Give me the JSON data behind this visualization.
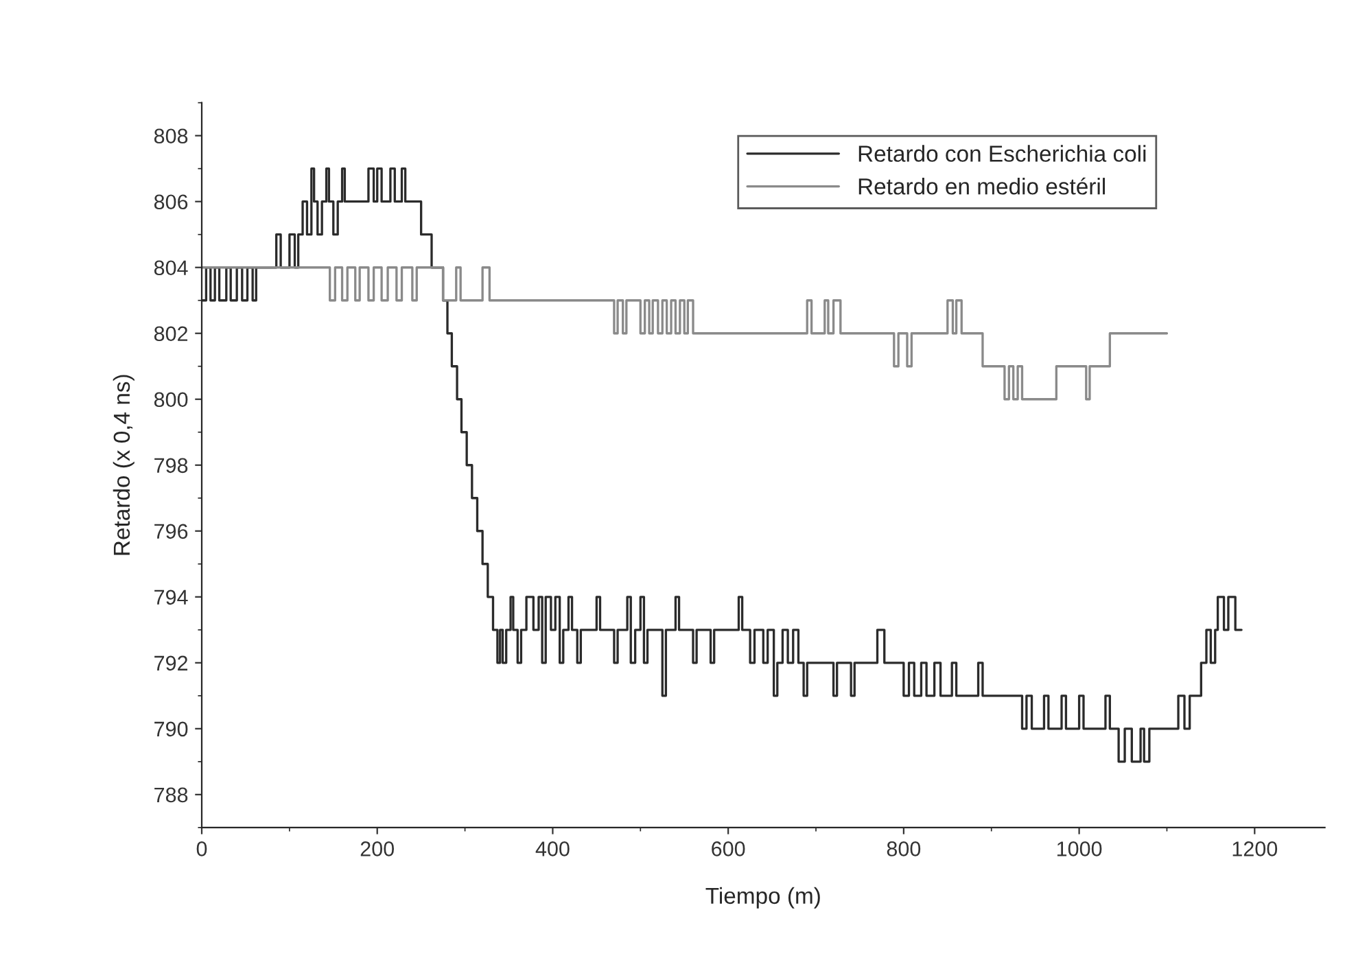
{
  "chart_data": {
    "type": "step",
    "xlabel": "Tiempo (m)",
    "ylabel": "Retardo (x 0,4 ns)",
    "xlim": [
      0,
      1280
    ],
    "ylim": [
      787,
      809
    ],
    "xticks": [
      0,
      200,
      400,
      600,
      800,
      1000,
      1200
    ],
    "yticks": [
      788,
      790,
      792,
      794,
      796,
      798,
      800,
      802,
      804,
      806,
      808
    ],
    "grid": false,
    "legend": "top right",
    "marker": "none",
    "line_style": "solid",
    "series": [
      {
        "name": "Retardo con Escherichia coli",
        "color": "#2b2b2b",
        "x": [
          0,
          5,
          10,
          15,
          20,
          28,
          33,
          40,
          46,
          52,
          58,
          62,
          85,
          90,
          100,
          106,
          110,
          115,
          120,
          125,
          128,
          132,
          137,
          142,
          145,
          150,
          155,
          160,
          163,
          190,
          196,
          200,
          205,
          215,
          220,
          228,
          232,
          250,
          262,
          275,
          280,
          285,
          291,
          296,
          302,
          308,
          314,
          320,
          326,
          332,
          337,
          340,
          343,
          347,
          352,
          355,
          360,
          364,
          370,
          378,
          384,
          388,
          392,
          398,
          403,
          408,
          412,
          418,
          422,
          428,
          432,
          450,
          454,
          470,
          474,
          485,
          489,
          494,
          500,
          504,
          508,
          525,
          529,
          540,
          544,
          560,
          564,
          580,
          584,
          612,
          616,
          625,
          630,
          640,
          645,
          652,
          656,
          662,
          668,
          674,
          680,
          686,
          690,
          720,
          724,
          740,
          744,
          770,
          778,
          800,
          806,
          812,
          820,
          826,
          835,
          842,
          855,
          860,
          885,
          890,
          935,
          940,
          946,
          960,
          965,
          980,
          985,
          1000,
          1005,
          1030,
          1035,
          1045,
          1052,
          1060,
          1070,
          1074,
          1080,
          1113,
          1120,
          1126,
          1139,
          1145,
          1150,
          1155,
          1158,
          1165,
          1170,
          1178,
          1185
        ],
        "values": [
          803,
          804,
          803,
          804,
          803,
          804,
          803,
          804,
          803,
          804,
          803,
          804,
          805,
          804,
          805,
          804,
          805,
          806,
          805,
          807,
          806,
          805,
          806,
          807,
          806,
          805,
          806,
          807,
          806,
          807,
          806,
          807,
          806,
          807,
          806,
          807,
          806,
          805,
          804,
          803,
          802,
          801,
          800,
          799,
          798,
          797,
          796,
          795,
          794,
          793,
          792,
          793,
          792,
          793,
          794,
          793,
          792,
          793,
          794,
          793,
          794,
          792,
          794,
          793,
          794,
          792,
          793,
          794,
          793,
          792,
          793,
          794,
          793,
          792,
          793,
          794,
          792,
          793,
          794,
          792,
          793,
          791,
          793,
          794,
          793,
          792,
          793,
          792,
          793,
          794,
          793,
          792,
          793,
          792,
          793,
          791,
          792,
          793,
          792,
          793,
          792,
          791,
          792,
          791,
          792,
          791,
          792,
          793,
          792,
          791,
          792,
          791,
          792,
          791,
          792,
          791,
          792,
          791,
          792,
          791,
          790,
          791,
          790,
          791,
          790,
          791,
          790,
          791,
          790,
          791,
          790,
          789,
          790,
          789,
          790,
          789,
          790,
          791,
          790,
          791,
          792,
          793,
          792,
          793,
          794,
          793,
          794,
          793,
          793
        ]
      },
      {
        "name": "Retardo en medio estéril",
        "color": "#8a8a8a",
        "x": [
          0,
          146,
          152,
          160,
          166,
          175,
          180,
          190,
          196,
          205,
          212,
          222,
          228,
          240,
          245,
          275,
          290,
          295,
          320,
          328,
          470,
          474,
          480,
          484,
          500,
          505,
          510,
          514,
          520,
          525,
          530,
          535,
          540,
          545,
          550,
          554,
          560,
          690,
          695,
          710,
          714,
          720,
          728,
          789,
          794,
          804,
          809,
          850,
          856,
          860,
          866,
          890,
          915,
          920,
          925,
          930,
          935,
          974,
          1008,
          1012,
          1035,
          1100
        ],
        "values": [
          804,
          803,
          804,
          803,
          804,
          803,
          804,
          803,
          804,
          803,
          804,
          803,
          804,
          803,
          804,
          803,
          804,
          803,
          804,
          803,
          802,
          803,
          802,
          803,
          802,
          803,
          802,
          803,
          802,
          803,
          802,
          803,
          802,
          803,
          802,
          803,
          802,
          803,
          802,
          803,
          802,
          803,
          802,
          801,
          802,
          801,
          802,
          803,
          802,
          803,
          802,
          801,
          800,
          801,
          800,
          801,
          800,
          801,
          800,
          801,
          802,
          802
        ]
      }
    ]
  }
}
